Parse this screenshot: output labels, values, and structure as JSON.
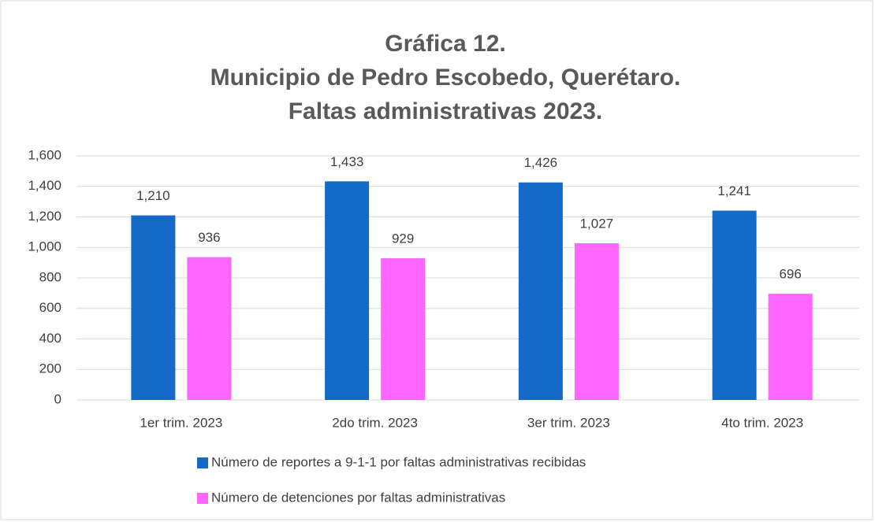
{
  "chart_data": {
    "type": "bar",
    "title": [
      "Gráfica 12.",
      "Municipio de Pedro Escobedo, Querétaro.",
      "Faltas administrativas 2023."
    ],
    "categories": [
      "1er trim. 2023",
      "2do trim. 2023",
      "3er trim. 2023",
      "4to trim. 2023"
    ],
    "series": [
      {
        "name": "Número de reportes a 9-1-1 por faltas administrativas recibidas",
        "color": "#1569c7",
        "values": [
          1210,
          1433,
          1426,
          1241
        ],
        "value_labels": [
          "1,210",
          "1,433",
          "1,426",
          "1,241"
        ]
      },
      {
        "name": "Número de detenciones por faltas administrativas",
        "color": "#ff66ff",
        "values": [
          936,
          929,
          1027,
          696
        ],
        "value_labels": [
          "936",
          "929",
          "1,027",
          "696"
        ]
      }
    ],
    "ylim": [
      0,
      1600
    ],
    "yticks": [
      0,
      200,
      400,
      600,
      800,
      {
        "value": 1000,
        "label": "1,000"
      },
      {
        "value": 1200,
        "label": "1,200"
      },
      {
        "value": 1400,
        "label": "1,400"
      },
      {
        "value": 1600,
        "label": "1,600"
      }
    ],
    "grid": true
  }
}
